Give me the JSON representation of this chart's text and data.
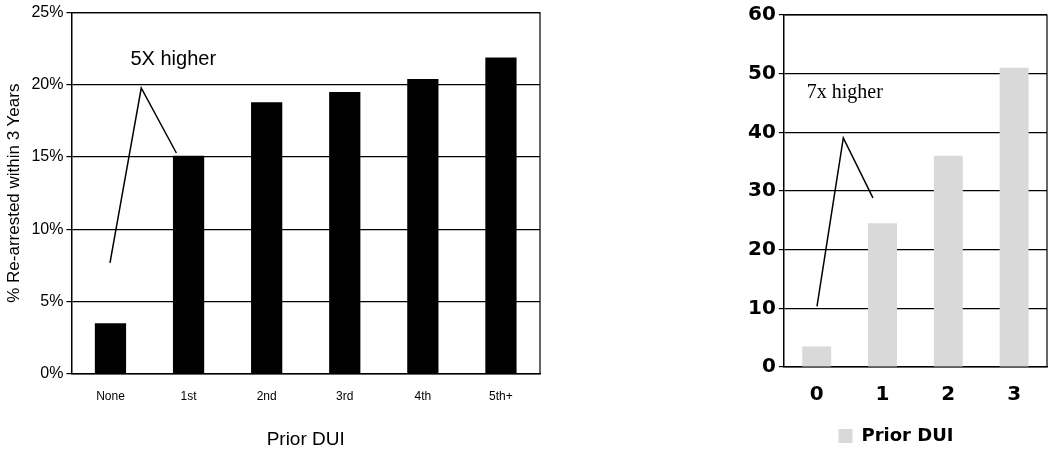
{
  "chart_data": [
    {
      "type": "bar",
      "xlabel": "Prior DUI",
      "ylabel": "% Re-arrested within 3 Years",
      "categories": [
        "None",
        "1st",
        "2nd",
        "3rd",
        "4th",
        "5th+"
      ],
      "series": [
        {
          "color": "#000000",
          "values": [
            3.5,
            15.1,
            18.8,
            19.5,
            20.4,
            21.9
          ]
        }
      ],
      "ylim": [
        0,
        25
      ],
      "yticks": [
        {
          "value": 0,
          "label": "0%"
        },
        {
          "value": 5,
          "label": "5%"
        },
        {
          "value": 10,
          "label": "10%"
        },
        {
          "value": 15,
          "label": "15%"
        },
        {
          "value": 20,
          "label": "20%"
        },
        {
          "value": 25,
          "label": "25%"
        }
      ],
      "grid": "y",
      "legend": false,
      "annotations": [
        "5X higher"
      ]
    },
    {
      "type": "bar",
      "categories": [
        "0",
        "1",
        "2",
        "3"
      ],
      "series": [
        {
          "name": "Prior DUI",
          "color": "#d9d9d9",
          "values": [
            3.5,
            24.5,
            36,
            51
          ]
        }
      ],
      "ylim": [
        0,
        60
      ],
      "yticks": [
        0,
        10,
        20,
        30,
        40,
        50,
        60
      ],
      "grid": "y",
      "legend": "bottom",
      "annotations": [
        "7x higher"
      ]
    }
  ]
}
